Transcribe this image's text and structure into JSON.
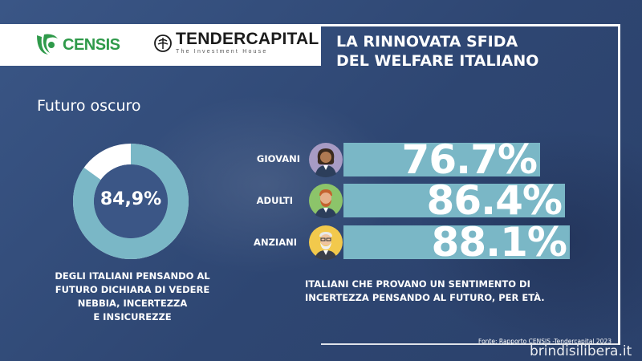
{
  "header": {
    "censis_logo_text": "CENSIS",
    "tendercapital_name": "TENDERCAPITAL",
    "tendercapital_tagline": "The Investment House",
    "title_line1": "LA RINNOVATA SFIDA",
    "title_line2": "DEL WELFARE ITALIANO"
  },
  "section_title": "Futuro oscuro",
  "colors": {
    "background": "#2f4a78",
    "accent_teal": "#7ab7c6",
    "donut_rest": "#ffffff",
    "censis_green": "#2f9a4a"
  },
  "chart_data": [
    {
      "type": "pie",
      "variant": "donut",
      "values": [
        84.9,
        15.1
      ],
      "value_label": "84,9%",
      "caption_lines": [
        "DEGLI ITALIANI PENSANDO AL",
        "FUTURO DICHIARA DI VEDERE",
        "NEBBIA, INCERTEZZA",
        "E INSICUREZZE"
      ]
    },
    {
      "type": "bar",
      "orientation": "horizontal",
      "categories": [
        "GIOVANI",
        "ADULTI",
        "ANZIANI"
      ],
      "values": [
        76.7,
        86.4,
        88.1
      ],
      "value_labels": [
        "76.7%",
        "86.4%",
        "88.1%"
      ],
      "icons": [
        "young-person-avatar-icon",
        "adult-person-avatar-icon",
        "elderly-person-avatar-icon"
      ],
      "caption_lines": [
        "ITALIANI CHE PROVANO UN SENTIMENTO DI",
        "INCERTEZZA PENSANDO AL FUTURO, PER ETÀ."
      ]
    }
  ],
  "source": "Fonte: Rapporto CENSIS -Tendercapital 2023",
  "watermark": "brindisilibera.it"
}
